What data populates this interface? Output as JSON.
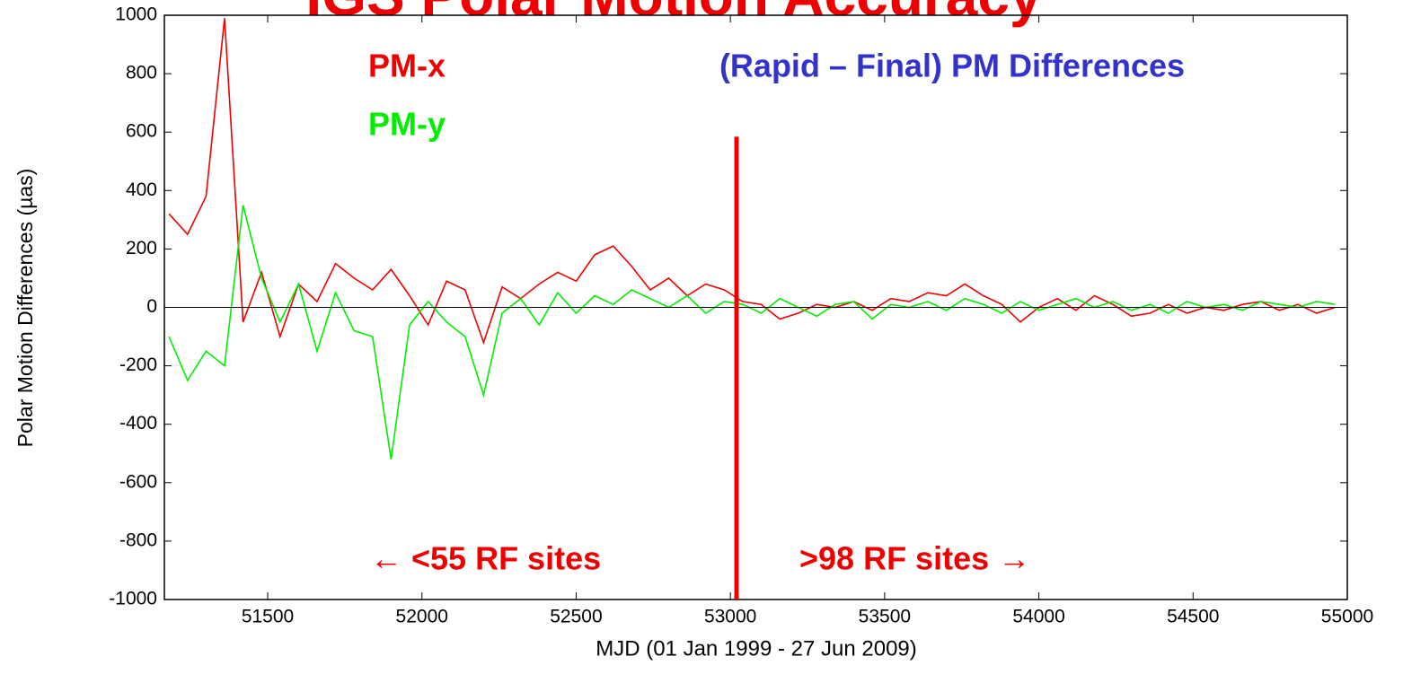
{
  "chart_data": {
    "type": "line",
    "title": "IGS Polar Motion Accuracy",
    "subtitle": "(Rapid – Final) PM Differences",
    "x_label": "MJD (01 Jan 1999 - 27 Jun 2009)",
    "y_label": "Polar Motion Differences (µas)",
    "annotations": [
      {
        "text": "← <55 RF sites",
        "color": "#ee0000"
      },
      {
        "text": ">98  RF sites →",
        "color": "#ee0000"
      }
    ],
    "divider": {
      "x": 53020,
      "y": [
        584,
        -1000
      ],
      "color": "#ee0000"
    },
    "x": [
      51180,
      51240,
      51300,
      51360,
      51420,
      51480,
      51540,
      51600,
      51660,
      51720,
      51780,
      51840,
      51900,
      51960,
      52020,
      52080,
      52140,
      52200,
      52260,
      52320,
      52380,
      52440,
      52500,
      52560,
      52620,
      52680,
      52740,
      52800,
      52860,
      52920,
      52980,
      53040,
      53100,
      53160,
      53220,
      53280,
      53340,
      53400,
      53460,
      53520,
      53580,
      53640,
      53700,
      53760,
      53820,
      53880,
      53940,
      54000,
      54060,
      54120,
      54180,
      54240,
      54300,
      54360,
      54420,
      54480,
      54540,
      54600,
      54660,
      54720,
      54780,
      54840,
      54900,
      54960
    ],
    "series": [
      {
        "name": "PM-x",
        "color": "#ee0000",
        "values": [
          320,
          250,
          380,
          990,
          -50,
          120,
          -100,
          80,
          20,
          150,
          100,
          60,
          130,
          40,
          -60,
          90,
          60,
          -120,
          70,
          30,
          80,
          120,
          90,
          180,
          210,
          140,
          60,
          100,
          40,
          80,
          60,
          20,
          10,
          -40,
          -20,
          10,
          0,
          20,
          -10,
          30,
          20,
          50,
          40,
          80,
          40,
          10,
          -50,
          0,
          30,
          -10,
          40,
          10,
          -30,
          -20,
          10,
          -20,
          0,
          -10,
          10,
          20,
          -10,
          10,
          -20,
          0
        ]
      },
      {
        "name": "PM-y",
        "color": "#00ee00",
        "values": [
          -100,
          -250,
          -150,
          -200,
          350,
          100,
          -50,
          80,
          -150,
          50,
          -80,
          -100,
          -520,
          -60,
          20,
          -50,
          -100,
          -300,
          -20,
          30,
          -60,
          50,
          -20,
          40,
          10,
          60,
          30,
          0,
          40,
          -20,
          20,
          10,
          -20,
          30,
          0,
          -30,
          10,
          20,
          -40,
          10,
          0,
          20,
          -10,
          30,
          10,
          -20,
          20,
          -10,
          10,
          30,
          0,
          20,
          -10,
          10,
          -20,
          20,
          0,
          10,
          -10,
          20,
          10,
          0,
          20,
          10
        ]
      }
    ],
    "xlim": [
      51165,
      55000
    ],
    "ylim": [
      -1000,
      1000
    ],
    "xticks": [
      51500,
      52000,
      52500,
      53000,
      53500,
      54000,
      54500,
      55000
    ],
    "yticks": [
      -1000,
      -800,
      -600,
      -400,
      -200,
      0,
      200,
      400,
      600,
      800,
      1000
    ],
    "grid": false
  }
}
